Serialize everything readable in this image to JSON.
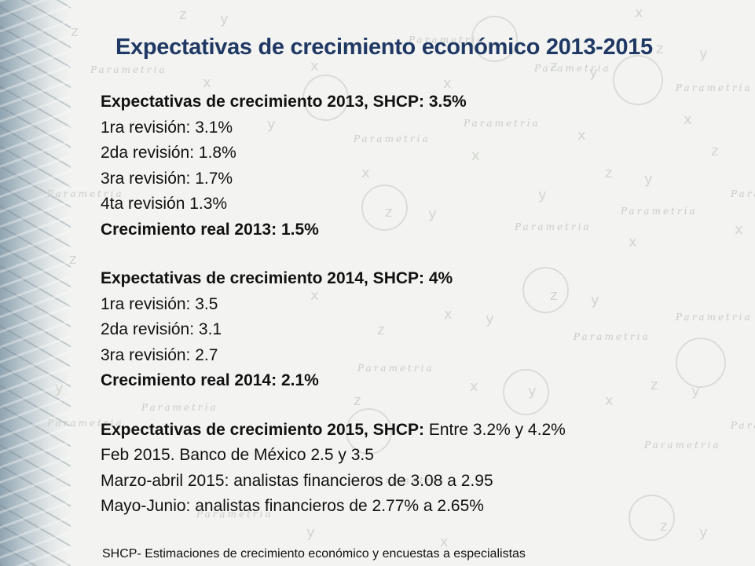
{
  "title": "Expectativas de crecimiento económico 2013-2015",
  "sections": [
    {
      "heading": "Expectativas de crecimiento 2013, SHCP: 3.5%",
      "lines": [
        "1ra revisión: 3.1%",
        "2da revisión: 1.8%",
        "3ra revisión: 1.7%",
        "4ta revisión 1.3%"
      ],
      "result": "Crecimiento real 2013: 1.5%"
    },
    {
      "heading": "Expectativas de crecimiento 2014, SHCP: 4%",
      "lines": [
        "1ra revisión: 3.5",
        "2da revisión: 3.1",
        "3ra revisión: 2.7"
      ],
      "result": "Crecimiento real 2014: 2.1%"
    },
    {
      "heading_bold": "Expectativas de crecimiento 2015, SHCP:",
      "heading_normal": " Entre 3.2% y 4.2%",
      "lines": [
        "Feb 2015. Banco de México  2.5 y 3.5",
        "Marzo-abril 2015: analistas financieros de 3.08 a 2.95",
        "Mayo-Junio: analistas financieros de 2.77% a 2.65%"
      ]
    }
  ],
  "footer": "SHCP- Estimaciones de crecimiento económico y encuestas a especialistas",
  "watermark": "Parametria"
}
